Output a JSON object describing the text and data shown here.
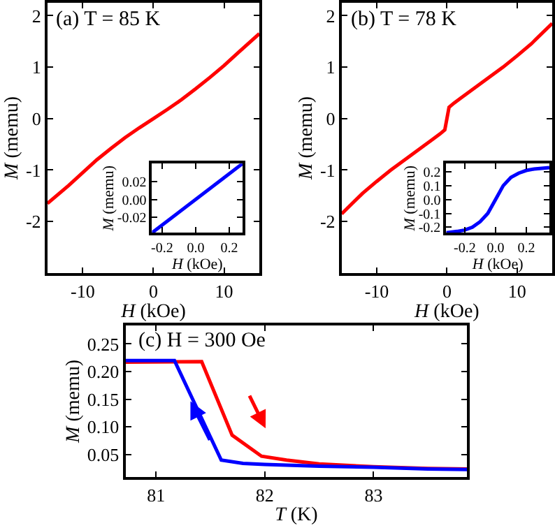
{
  "chart_data": [
    {
      "type": "line",
      "title": "(a) T = 85 K",
      "xlabel": "H (kOe)",
      "ylabel": "M (memu)",
      "xlim": [
        -15,
        15
      ],
      "ylim": [
        -3,
        2.25
      ],
      "xticks": [
        -10,
        0,
        10
      ],
      "yticks": [
        -2,
        -1,
        0,
        1,
        2
      ],
      "x": [
        -15,
        -12,
        -10,
        -8,
        -6,
        -4,
        -2,
        0,
        2,
        4,
        6,
        8,
        10,
        12,
        15
      ],
      "series": [
        {
          "color": "#ff0000",
          "values": [
            -1.65,
            -1.3,
            -1.05,
            -0.8,
            -0.58,
            -0.37,
            -0.18,
            0,
            0.18,
            0.37,
            0.58,
            0.8,
            1.03,
            1.28,
            1.65
          ]
        }
      ]
    },
    {
      "type": "line",
      "xlabel": "H (kOe)",
      "ylabel": "M (memu)",
      "xlim": [
        -0.26,
        0.28
      ],
      "ylim": [
        -0.037,
        0.04
      ],
      "xticks": [
        {
          "value": -0.2,
          "label": "-0.2"
        },
        {
          "value": 0,
          "label": "0.0"
        },
        0.2
      ],
      "yticks": [
        {
          "value": -0.02,
          "label": "-0.02"
        },
        {
          "value": 0,
          "label": "0.00"
        },
        0.02
      ],
      "x": [
        -0.26,
        0.28
      ],
      "series": [
        {
          "color": "#0000ff",
          "values": [
            -0.037,
            0.04
          ]
        }
      ]
    },
    {
      "type": "line",
      "title": "(b) T = 78 K",
      "xlabel": "H (kOe)",
      "ylabel": "M (memu)",
      "xlim": [
        -15,
        15
      ],
      "ylim": [
        -3,
        2.25
      ],
      "xticks": [
        -10,
        0,
        10
      ],
      "yticks": [
        -2,
        -1,
        0,
        1,
        2
      ],
      "x": [
        -15,
        -12,
        -10,
        -8,
        -6,
        -4,
        -2,
        -1,
        -0.3,
        0,
        0.3,
        1,
        2,
        4,
        6,
        8,
        10,
        12,
        15
      ],
      "series": [
        {
          "color": "#ff0000",
          "values": [
            -1.85,
            -1.45,
            -1.22,
            -1.0,
            -0.8,
            -0.6,
            -0.4,
            -0.3,
            -0.22,
            0,
            0.22,
            0.3,
            0.4,
            0.6,
            0.8,
            1.0,
            1.22,
            1.45,
            1.85
          ]
        }
      ]
    },
    {
      "type": "line",
      "xlabel": "H (kOe)",
      "ylabel": "M (memu)",
      "xlim": [
        -0.32,
        0.35
      ],
      "ylim": [
        -0.24,
        0.26
      ],
      "xticks": [
        {
          "value": -0.2,
          "label": "-0.2"
        },
        {
          "value": 0,
          "label": "0.0"
        },
        {
          "value": 0.2,
          "label": "0.2"
        }
      ],
      "yticks": [
        -0.2,
        -0.1,
        {
          "value": 0,
          "label": "0.0"
        },
        0.1,
        0.2
      ],
      "x": [
        -0.32,
        -0.25,
        -0.2,
        -0.15,
        -0.1,
        -0.05,
        0,
        0.05,
        0.1,
        0.15,
        0.2,
        0.25,
        0.35
      ],
      "series": [
        {
          "color": "#0000ff",
          "values": [
            -0.24,
            -0.23,
            -0.22,
            -0.2,
            -0.16,
            -0.1,
            0,
            0.1,
            0.16,
            0.19,
            0.21,
            0.22,
            0.23
          ]
        }
      ]
    },
    {
      "type": "line",
      "title": "(c) H = 300 Oe",
      "xlabel": "T (K)",
      "ylabel": "M (memu)",
      "xlim": [
        80.72,
        83.86
      ],
      "ylim": [
        0.01,
        0.283
      ],
      "xticks": [
        81,
        82,
        83
      ],
      "yticks": [
        0.05,
        {
          "value": 0.1,
          "label": "0.10"
        },
        0.15,
        {
          "value": 0.2,
          "label": "0.20"
        },
        0.25
      ],
      "series": [
        {
          "color": "#ff0000",
          "x": [
            80.72,
            81.42,
            81.7,
            81.97,
            82.2,
            82.5,
            83.0,
            83.5,
            83.86
          ],
          "values": [
            0.217,
            0.218,
            0.085,
            0.047,
            0.04,
            0.033,
            0.028,
            0.025,
            0.024
          ]
        },
        {
          "color": "#0000ff",
          "x": [
            80.72,
            81.17,
            81.6,
            81.8,
            82.0,
            82.5,
            83.0,
            83.5,
            83.86
          ],
          "values": [
            0.22,
            0.22,
            0.04,
            0.034,
            0.032,
            0.029,
            0.027,
            0.024,
            0.023
          ]
        }
      ]
    }
  ]
}
